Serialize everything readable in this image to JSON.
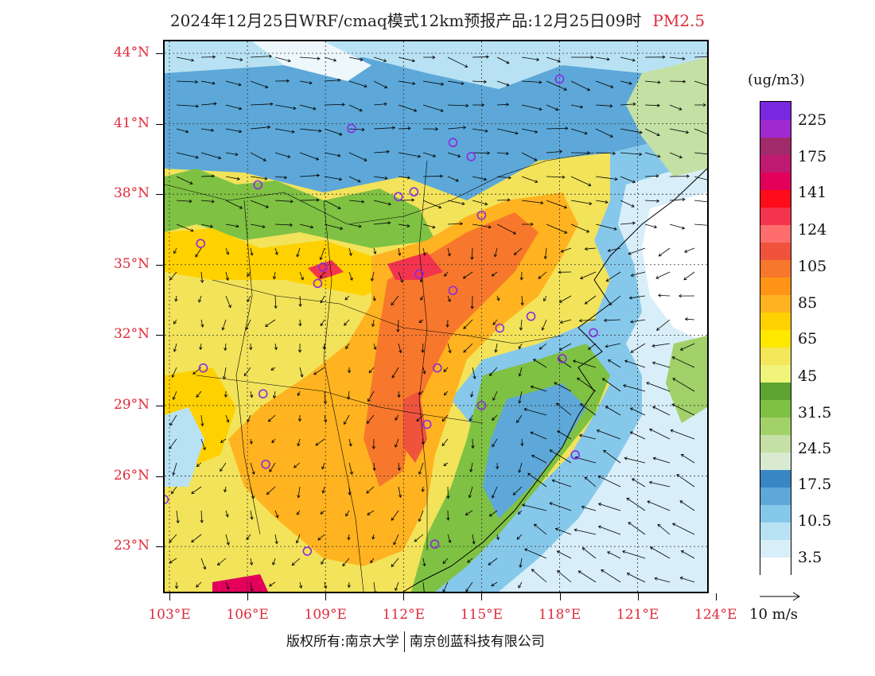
{
  "title": {
    "text": "2024年12月25日WRF/cmaq模式12km预报产品:12月25日09时",
    "pollutant": "PM2.5"
  },
  "axes": {
    "lat_labels": [
      "44°N",
      "41°N",
      "38°N",
      "35°N",
      "32°N",
      "29°N",
      "26°N",
      "23°N"
    ],
    "lon_labels": [
      "103°E",
      "106°E",
      "109°E",
      "112°E",
      "115°E",
      "118°E",
      "121°E",
      "124°E"
    ]
  },
  "legend": {
    "unit": "(ug/m3)",
    "labels": [
      "225",
      "175",
      "141",
      "124",
      "105",
      "85",
      "65",
      "45",
      "31.5",
      "24.5",
      "17.5",
      "10.5",
      "3.5"
    ],
    "colors": [
      "#ffffff",
      "#d8eef8",
      "#b8e2f4",
      "#86c8ea",
      "#5da8d8",
      "#3a86c4",
      "#d9ead0",
      "#c4e0a4",
      "#a2d16a",
      "#7fc143",
      "#5ca330",
      "#f0f47a",
      "#f4e75a",
      "#ffe800",
      "#ffd100",
      "#ffb320",
      "#ff9416",
      "#f7782c",
      "#f0533c",
      "#ff6d6d",
      "#f4344e",
      "#ff0c1a",
      "#e2005a",
      "#c01a70",
      "#a02a6a",
      "#a02ad0",
      "#7a28e0"
    ]
  },
  "wind_reference": {
    "label": "10 m/s"
  },
  "credit": {
    "left": "版权所有:南京大学",
    "right": "南京创蓝科技有限公司"
  },
  "stations": [
    "42.9N 118.0E",
    "40.8N 110.0E",
    "40.2N 113.9E",
    "39.6N 114.6E",
    "38.4N 106.4E",
    "37.9N 111.8E",
    "38.1N 112.4E",
    "37.1N 115.0E",
    "35.9N 104.2E",
    "34.9N 108.9E",
    "34.6N 112.6E",
    "34.2N 108.7E",
    "33.9N 113.9E",
    "32.8N 116.9E",
    "32.3N 115.7E",
    "32.1N 119.3E",
    "31.0N 118.1E",
    "30.6N 104.3E",
    "30.6N 113.3E",
    "29.5N 106.6E",
    "29.0N 115.0E",
    "28.2N 112.9E",
    "26.9N 118.6E",
    "26.5N 106.7E",
    "25.0N 102.8E",
    "23.1N 113.2E",
    "22.8N 108.3E"
  ]
}
